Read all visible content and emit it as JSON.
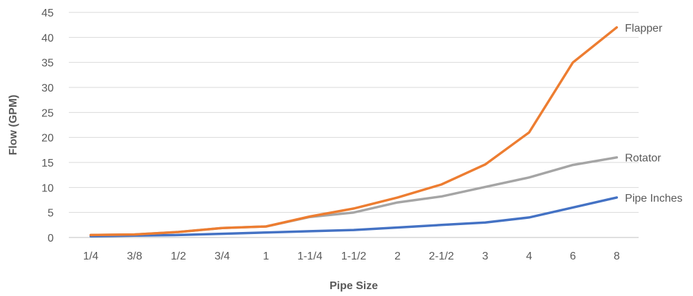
{
  "chart_data": {
    "type": "line",
    "title": "",
    "xlabel": "Pipe Size",
    "ylabel": "Flow (GPM)",
    "categories": [
      "1/4",
      "3/8",
      "1/2",
      "3/4",
      "1",
      "1-1/4",
      "1-1/2",
      "2",
      "2-1/2",
      "3",
      "4",
      "6",
      "8"
    ],
    "ylim": [
      0,
      45
    ],
    "yticks": [
      0,
      5,
      10,
      15,
      20,
      25,
      30,
      35,
      40,
      45
    ],
    "grid": true,
    "legend": "none",
    "series": [
      {
        "name": "Pipe Inches",
        "color": "#4472c4",
        "values": [
          0.25,
          0.375,
          0.5,
          0.75,
          1,
          1.25,
          1.5,
          2,
          2.5,
          3,
          4,
          6,
          8
        ]
      },
      {
        "name": "Rotator",
        "color": "#a5a5a5",
        "values": [
          0.5,
          0.6,
          1.1,
          1.9,
          2.2,
          4.1,
          5,
          7,
          8.2,
          10.1,
          12,
          14.5,
          16
        ]
      },
      {
        "name": "Flapper",
        "color": "#ed7d31",
        "values": [
          0.5,
          0.6,
          1.1,
          1.9,
          2.2,
          4.2,
          5.8,
          8,
          10.6,
          14.6,
          21,
          35,
          42
        ]
      }
    ]
  }
}
